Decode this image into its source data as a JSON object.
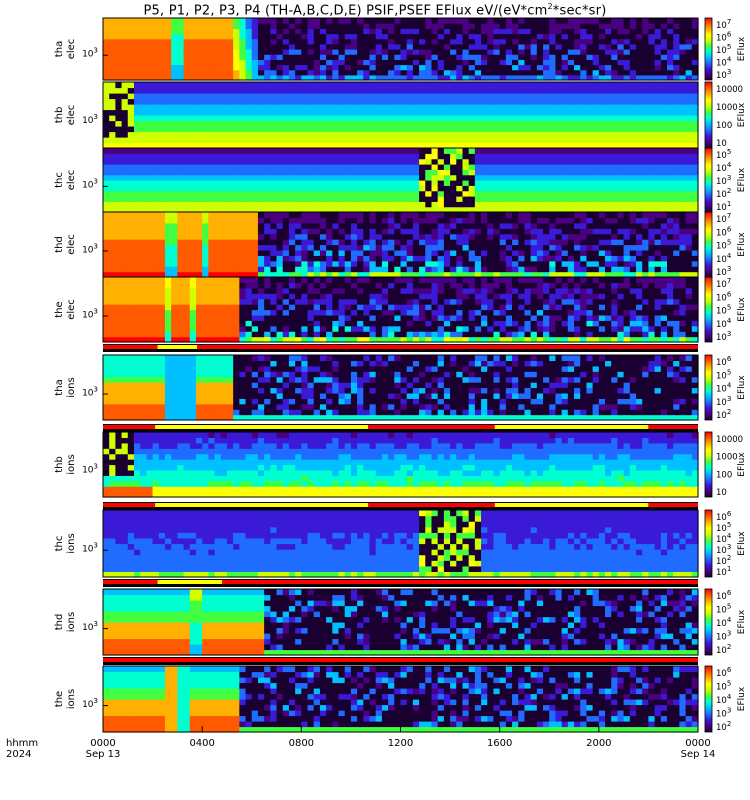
{
  "title_parts": [
    "P5, P1, P2, P3, P4 (TH-A,B,C,D,E) PSIF,PSEF EFlux eV/(eV*cm",
    "2",
    "*sec*sr)"
  ],
  "colors": {
    "spectral": [
      "#1a0030",
      "#4b0082",
      "#3a1ad6",
      "#1f6cff",
      "#00c0ff",
      "#00ffd0",
      "#40ff40",
      "#d0ff00",
      "#ffff00",
      "#ffb000",
      "#ff5a00",
      "#ff0000"
    ],
    "bar_red": "#ff0000",
    "bar_yellow": "#ffff00",
    "bar_black": "#000000"
  },
  "chart_data": {
    "type": "heatmap",
    "xaxis": {
      "row_label_1": "hhmm",
      "row_label_2": "2024",
      "ticks": [
        {
          "hour": 0,
          "label": "0000",
          "sublabel": "Sep 13"
        },
        {
          "hour": 4,
          "label": "0400",
          "sublabel": ""
        },
        {
          "hour": 8,
          "label": "0800",
          "sublabel": ""
        },
        {
          "hour": 12,
          "label": "1200",
          "sublabel": ""
        },
        {
          "hour": 16,
          "label": "1600",
          "sublabel": ""
        },
        {
          "hour": 20,
          "label": "2000",
          "sublabel": ""
        },
        {
          "hour": 24,
          "label": "0000",
          "sublabel": "Sep 14"
        }
      ],
      "range_hours": [
        0,
        24
      ]
    },
    "panels": [
      {
        "probe": "tha",
        "species": "elec",
        "ylabel": [
          "tha",
          "elec"
        ],
        "ytick": "10^3",
        "cbar_ticks": [
          "10^7",
          "10^6",
          "10^5",
          "10^4",
          "10^3"
        ],
        "cbar_label": "EFlux",
        "profile": "tha_elec",
        "bar_below": null
      },
      {
        "probe": "thb",
        "species": "elec",
        "ylabel": [
          "thb",
          "elec"
        ],
        "ytick": "10^3",
        "cbar_ticks": [
          "10000",
          "1000",
          "100",
          "10"
        ],
        "cbar_label": "EFlux",
        "profile": "thb_elec",
        "bar_below": null
      },
      {
        "probe": "thc",
        "species": "elec",
        "ylabel": [
          "thc",
          "elec"
        ],
        "ytick": "10^3",
        "cbar_ticks": [
          "10^5",
          "10^4",
          "10^3",
          "10^2",
          "10^1"
        ],
        "cbar_label": "EFlux",
        "profile": "thc_elec",
        "bar_below": null
      },
      {
        "probe": "thd",
        "species": "elec",
        "ylabel": [
          "thd",
          "elec"
        ],
        "ytick": "10^3",
        "cbar_ticks": [
          "10^7",
          "10^6",
          "10^5",
          "10^4",
          "10^3"
        ],
        "cbar_label": "EFlux",
        "profile": "thd_elec",
        "bar_below": null
      },
      {
        "probe": "the",
        "species": "elec",
        "ylabel": [
          "the",
          "elec"
        ],
        "ytick": "10^3",
        "cbar_ticks": [
          "10^7",
          "10^6",
          "10^5",
          "10^4",
          "10^3"
        ],
        "cbar_label": "EFlux",
        "profile": "the_elec",
        "bar_below": [
          {
            "from": 0,
            "to": 2.2,
            "color": "red"
          },
          {
            "from": 2.2,
            "to": 3.8,
            "color": "yellow"
          },
          {
            "from": 3.8,
            "to": 24,
            "color": "red"
          }
        ]
      },
      {
        "probe": "tha",
        "species": "ions",
        "ylabel": [
          "tha",
          "ions"
        ],
        "ytick": "10^3",
        "cbar_ticks": [
          "10^6",
          "10^5",
          "10^4",
          "10^3",
          "10^2"
        ],
        "cbar_label": "EFlux",
        "profile": "tha_ions",
        "bar_below": [
          {
            "from": 0,
            "to": 2.1,
            "color": "red"
          },
          {
            "from": 2.1,
            "to": 10.7,
            "color": "yellow"
          },
          {
            "from": 10.7,
            "to": 15.8,
            "color": "red"
          },
          {
            "from": 15.8,
            "to": 22.0,
            "color": "yellow"
          },
          {
            "from": 22.0,
            "to": 24,
            "color": "red"
          }
        ]
      },
      {
        "probe": "thb",
        "species": "ions",
        "ylabel": [
          "thb",
          "ions"
        ],
        "ytick": "10^3",
        "cbar_ticks": [
          "10000",
          "1000",
          "100",
          "10"
        ],
        "cbar_label": "EFlux",
        "profile": "thb_ions",
        "bar_below": [
          {
            "from": 0,
            "to": 2.1,
            "color": "red"
          },
          {
            "from": 2.1,
            "to": 10.7,
            "color": "yellow"
          },
          {
            "from": 10.7,
            "to": 15.8,
            "color": "red"
          },
          {
            "from": 15.8,
            "to": 22.0,
            "color": "yellow"
          },
          {
            "from": 22.0,
            "to": 24,
            "color": "red"
          }
        ]
      },
      {
        "probe": "thc",
        "species": "ions",
        "ylabel": [
          "thc",
          "ions"
        ],
        "ytick": "10^3",
        "cbar_ticks": [
          "10^6",
          "10^5",
          "10^4",
          "10^3",
          "10^2",
          "10^1"
        ],
        "cbar_label": "EFlux",
        "profile": "thc_ions",
        "bar_below": [
          {
            "from": 0,
            "to": 2.2,
            "color": "red"
          },
          {
            "from": 2.2,
            "to": 4.8,
            "color": "yellow"
          },
          {
            "from": 4.8,
            "to": 24,
            "color": "red"
          }
        ]
      },
      {
        "probe": "thd",
        "species": "ions",
        "ylabel": [
          "thd",
          "ions"
        ],
        "ytick": "10^3",
        "cbar_ticks": [
          "10^6",
          "10^5",
          "10^4",
          "10^3",
          "10^2"
        ],
        "cbar_label": "EFlux",
        "profile": "thd_ions",
        "bar_below": [
          {
            "from": 0,
            "to": 24,
            "color": "red"
          }
        ]
      },
      {
        "probe": "the",
        "species": "ions",
        "ylabel": [
          "the",
          "ions"
        ],
        "ytick": "10^3",
        "cbar_ticks": [
          "10^6",
          "10^5",
          "10^4",
          "10^3",
          "10^2"
        ],
        "cbar_label": "EFlux",
        "profile": "the_ions",
        "bar_below": null
      }
    ]
  }
}
